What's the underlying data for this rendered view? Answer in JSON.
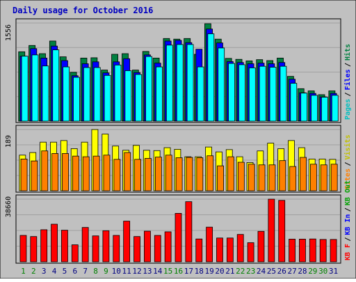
{
  "chart_data": {
    "type": "bar",
    "title": "Daily usage for October 2016",
    "categories": [
      "1",
      "2",
      "3",
      "4",
      "5",
      "6",
      "7",
      "8",
      "9",
      "10",
      "11",
      "12",
      "13",
      "14",
      "15",
      "16",
      "17",
      "18",
      "19",
      "20",
      "21",
      "22",
      "23",
      "24",
      "25",
      "26",
      "27",
      "28",
      "29",
      "30",
      "31"
    ],
    "weekend_days": [
      "1",
      "2",
      "8",
      "9",
      "15",
      "16",
      "22",
      "23",
      "29",
      "30"
    ],
    "panels": [
      {
        "name": "hits-files-pages",
        "max_label": "1556",
        "ylim": [
          0,
          1556
        ],
        "legend": [
          "Pages",
          "Files",
          "Hits"
        ],
        "series": [
          {
            "name": "Hits",
            "color": "#008040",
            "values": [
              1100,
              1200,
              1070,
              1270,
              1020,
              775,
              1000,
              1005,
              810,
              1060,
              1070,
              810,
              1105,
              1000,
              1310,
              1300,
              1310,
              1060,
              1545,
              1300,
              995,
              980,
              955,
              975,
              960,
              1000,
              710,
              515,
              480,
              420,
              480
            ]
          },
          {
            "name": "Files",
            "color": "#0000ff",
            "values": [
              1030,
              1150,
              1000,
              1190,
              960,
              720,
              910,
              940,
              765,
              940,
              990,
              770,
              1050,
              920,
              1270,
              1280,
              1245,
              1140,
              1460,
              1240,
              945,
              930,
              910,
              920,
              910,
              930,
              665,
              450,
              440,
              385,
              440
            ]
          },
          {
            "name": "Pages",
            "color": "#00ffff",
            "values": [
              1030,
              1050,
              875,
              1130,
              860,
              695,
              850,
              850,
              725,
              890,
              800,
              740,
              1025,
              860,
              1205,
              1215,
              1215,
              860,
              1385,
              1160,
              915,
              895,
              845,
              870,
              855,
              870,
              600,
              445,
              410,
              380,
              410
            ]
          }
        ]
      },
      {
        "name": "visits-sites",
        "max_label": "189",
        "ylim": [
          0,
          189
        ],
        "legend": [
          "Sites",
          "Visits"
        ],
        "series": [
          {
            "name": "Visits",
            "color": "#ffff00",
            "values": [
              110,
              118,
              150,
              150,
              155,
              130,
              150,
              189,
              175,
              138,
              125,
              140,
              125,
              124,
              133,
              128,
              105,
              105,
              135,
              120,
              127,
              105,
              87,
              123,
              147,
              130,
              155,
              133,
              98,
              98,
              97
            ]
          },
          {
            "name": "Sites",
            "color": "#ff8000",
            "values": [
              98,
              92,
              123,
              115,
              115,
              107,
              105,
              107,
              110,
              97,
              118,
              97,
              100,
              104,
              110,
              102,
              103,
              102,
              108,
              77,
              105,
              88,
              82,
              80,
              80,
              93,
              75,
              103,
              82,
              80,
              82
            ]
          }
        ]
      },
      {
        "name": "kbytes",
        "max_label": "38660",
        "ylim": [
          0,
          38660
        ],
        "legend": [
          "KB F",
          "KB In",
          "KB Out"
        ],
        "series": [
          {
            "name": "KB F",
            "color": "#ff0000",
            "values": [
              16300,
              15600,
              19800,
              23200,
              19500,
              10500,
              21200,
              16000,
              19200,
              16300,
              25100,
              15600,
              18900,
              16300,
              18500,
              29900,
              37100,
              14100,
              21400,
              14700,
              14700,
              16900,
              11800,
              18800,
              38660,
              37900,
              14000,
              14000,
              14100,
              13800,
              13800
            ]
          }
        ]
      }
    ],
    "colors": {
      "background": "#c0c0c0",
      "plot_background": "#c0c0c0",
      "title": "#0000c0",
      "gridline": "#a0a0a0",
      "weekday_label": "#000080",
      "weekend_label": "#008000",
      "bar_border": "#000000"
    },
    "legend_colors": {
      "Pages": "#00c0c0",
      "Files": "#0000ff",
      "Hits": "#008040",
      "Sites": "#ff8000",
      "Visits": "#c0c000",
      "KB F": "#ff0000",
      "KB In": "#0000ff",
      "KB Out": "#00a000"
    }
  }
}
